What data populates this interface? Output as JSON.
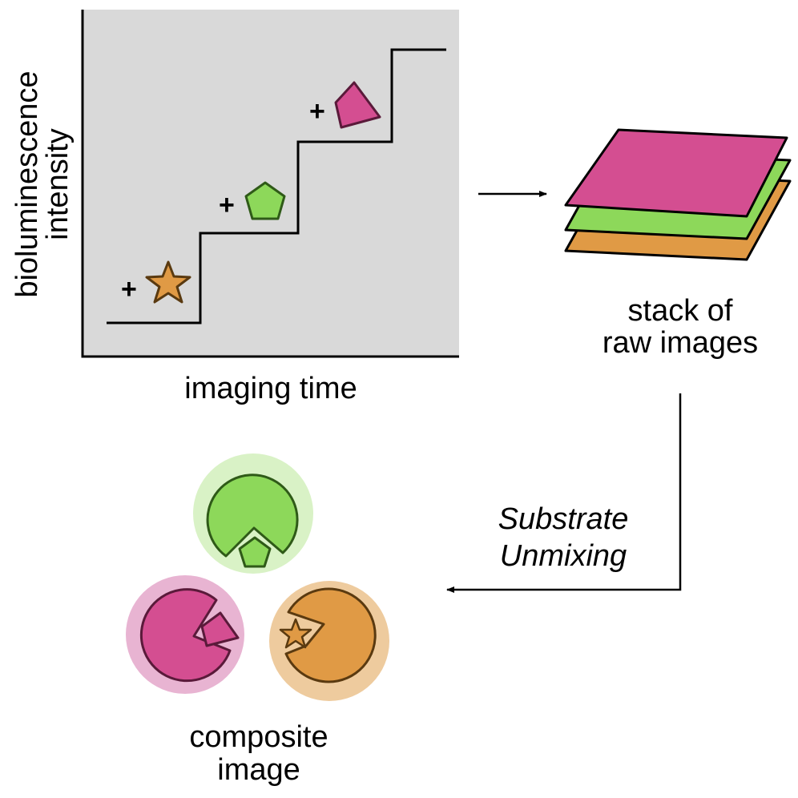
{
  "chart": {
    "ylabel_line1": "bioluminescence",
    "ylabel_line2": "intensity",
    "xlabel": "imaging time",
    "plus": "+"
  },
  "stack": {
    "label_line1": "stack of",
    "label_line2": "raw images"
  },
  "process": {
    "label_line1": "Substrate",
    "label_line2": "Unmixing"
  },
  "composite": {
    "label_line1": "composite",
    "label_line2": "image"
  },
  "colors": {
    "panel_bg": "#d9d9d9",
    "orange": "#e09a45",
    "orange_halo": "#eecb9e",
    "green": "#8dd85a",
    "green_halo": "#d9f2c6",
    "magenta": "#d44e91",
    "magenta_halo": "#e8b4d2",
    "outline_dark": "#4a3a20"
  },
  "icons": {
    "star": "star-icon",
    "pentagon": "pentagon-icon",
    "quad": "quadrilateral-icon"
  }
}
